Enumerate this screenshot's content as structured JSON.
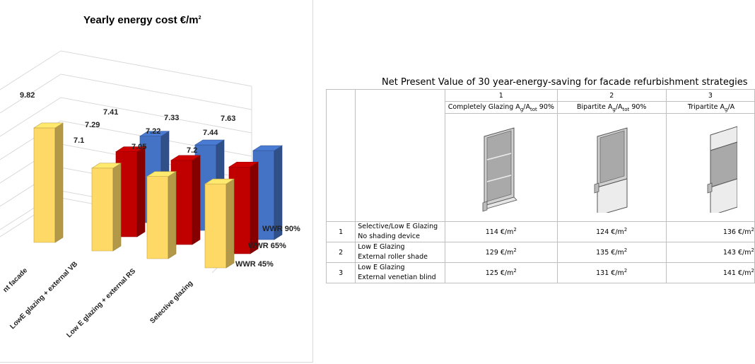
{
  "chart": {
    "title": "Yearly energy cost €/m",
    "title_sup": "2"
  },
  "chart_data": {
    "type": "bar",
    "title": "Yearly energy cost €/m²",
    "categories": [
      "...nt facade",
      "LowE glazing + external VB",
      "Low E glazing + external RS",
      "Selective glazing"
    ],
    "series": [
      {
        "name": "WWR 45%",
        "color": "#ffd966",
        "values": [
          9.82,
          7.1,
          7.05,
          7.2
        ]
      },
      {
        "name": "WWR 65%",
        "color": "#c00000",
        "values": [
          null,
          7.29,
          7.22,
          7.44
        ]
      },
      {
        "name": "WWR 90%",
        "color": "#4472c4",
        "values": [
          null,
          7.41,
          7.33,
          7.63
        ]
      }
    ],
    "labels": {
      "yellow": [
        "9.82",
        "7.1",
        "7.05",
        "7.2"
      ],
      "red": [
        "7.29",
        "7.22",
        "7.44"
      ],
      "blue": [
        "7.41",
        "7.33",
        "7.63"
      ]
    },
    "depth_labels": [
      "WWR 90%",
      "WWR 65%",
      "WWR 45%"
    ],
    "category_labels": [
      "nt facade",
      "LowE glazing + external VB",
      "Low E glazing + external RS",
      "Selective glazing"
    ]
  },
  "table": {
    "title": "Net Present Value of 30 year-energy-saving for facade refurbishment strategies",
    "col_nums": [
      "1",
      "2",
      "3"
    ],
    "col_names": [
      {
        "pre": "Completely Glazing A",
        "sub1": "g",
        "mid": "/A",
        "sub2": "tot",
        "post": " 90%"
      },
      {
        "pre": "Bipartite A",
        "sub1": "g",
        "mid": "/A",
        "sub2": "tot",
        "post": " 90%"
      },
      {
        "pre": "Tripartite A",
        "sub1": "g",
        "mid": "/A",
        "sub2": "",
        "post": ""
      }
    ],
    "rows": [
      {
        "idx": "1",
        "line1": "Selective/Low E Glazing",
        "line2": "No shading device",
        "values": [
          "114 €/m",
          "124 €/m",
          "136 €/m"
        ]
      },
      {
        "idx": "2",
        "line1": "Low E Glazing",
        "line2": "External roller shade",
        "values": [
          "129 €/m",
          "135 €/m",
          "143 €/m"
        ]
      },
      {
        "idx": "3",
        "line1": "Low E Glazing",
        "line2": "External venetian blind",
        "values": [
          "125 €/m",
          "131 €/m",
          "141 €/m"
        ]
      }
    ],
    "unit_sup": "2"
  }
}
